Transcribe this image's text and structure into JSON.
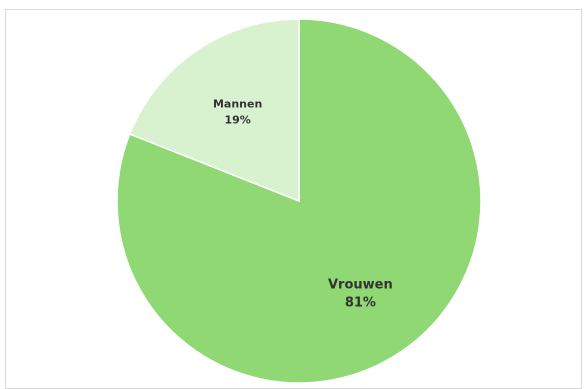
{
  "chart_data": {
    "type": "pie",
    "slices": [
      {
        "name": "Vrouwen",
        "value": 81,
        "label": "81%",
        "color": "#8fd873"
      },
      {
        "name": "Mannen",
        "value": 19,
        "label": "19%",
        "color": "#d8f2d0"
      }
    ],
    "legend": "none",
    "start": "top",
    "direction": "clockwise",
    "border_color": "#ffffff"
  }
}
